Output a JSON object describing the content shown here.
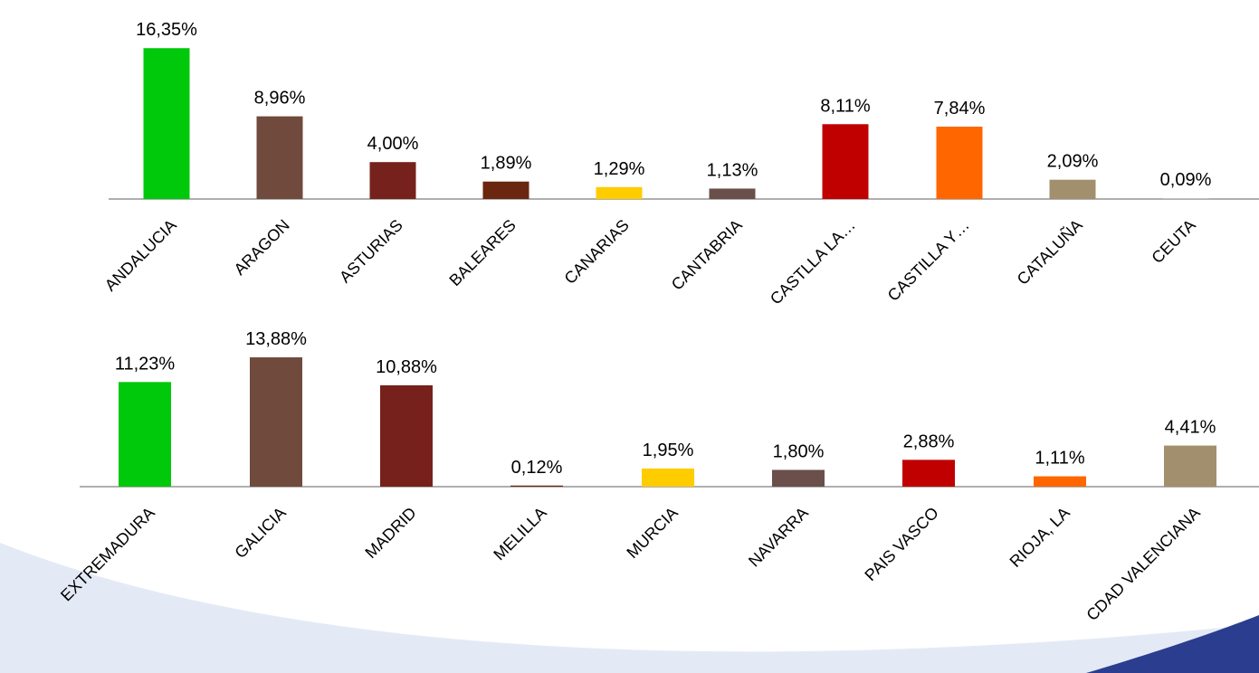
{
  "chart_data": [
    {
      "type": "bar",
      "categories": [
        "ANDALUCIA",
        "ARAGON",
        "ASTURIAS",
        "BALEARES",
        "CANARIAS",
        "CANTABRIA",
        "CASTLLA LA…",
        "CASTILLA Y…",
        "CATALUÑA",
        "CEUTA"
      ],
      "values": [
        16.35,
        8.96,
        4.0,
        1.89,
        1.29,
        1.13,
        8.11,
        7.84,
        2.09,
        0.09
      ],
      "data_labels": [
        "16,35%",
        "8,96%",
        "4,00%",
        "1,89%",
        "1,29%",
        "1,13%",
        "8,11%",
        "7,84%",
        "2,09%",
        "0,09%"
      ],
      "colors": [
        "#00c80a",
        "#704a3c",
        "#76211b",
        "#6a260f",
        "#ffcc00",
        "#6a4f4a",
        "#c00000",
        "#ff6600",
        "#a28f6d",
        "#bfbfbf"
      ],
      "title": "",
      "xlabel": "",
      "ylabel": "",
      "grid": false,
      "legend": "none"
    },
    {
      "type": "bar",
      "categories": [
        "EXTREMADURA",
        "GALICIA",
        "MADRID",
        "MELILLA",
        "MURCIA",
        "NAVARRA",
        "PAIS VASCO",
        "RIOJA, LA",
        "CDAD VALENCIANA"
      ],
      "values": [
        11.23,
        13.88,
        10.88,
        0.12,
        1.95,
        1.8,
        2.88,
        1.11,
        4.41
      ],
      "data_labels": [
        "11,23%",
        "13,88%",
        "10,88%",
        "0,12%",
        "1,95%",
        "1,80%",
        "2,88%",
        "1,11%",
        "4,41%"
      ],
      "colors": [
        "#00c80a",
        "#704a3c",
        "#76211b",
        "#6a260f",
        "#ffcc00",
        "#6a4f4a",
        "#c00000",
        "#ff6600",
        "#a28f6d"
      ],
      "title": "",
      "xlabel": "",
      "ylabel": "",
      "grid": false,
      "legend": "none"
    }
  ],
  "decoration": {
    "swoosh_color": "#e4eaf5",
    "corner_color": "#2b3d8f"
  }
}
